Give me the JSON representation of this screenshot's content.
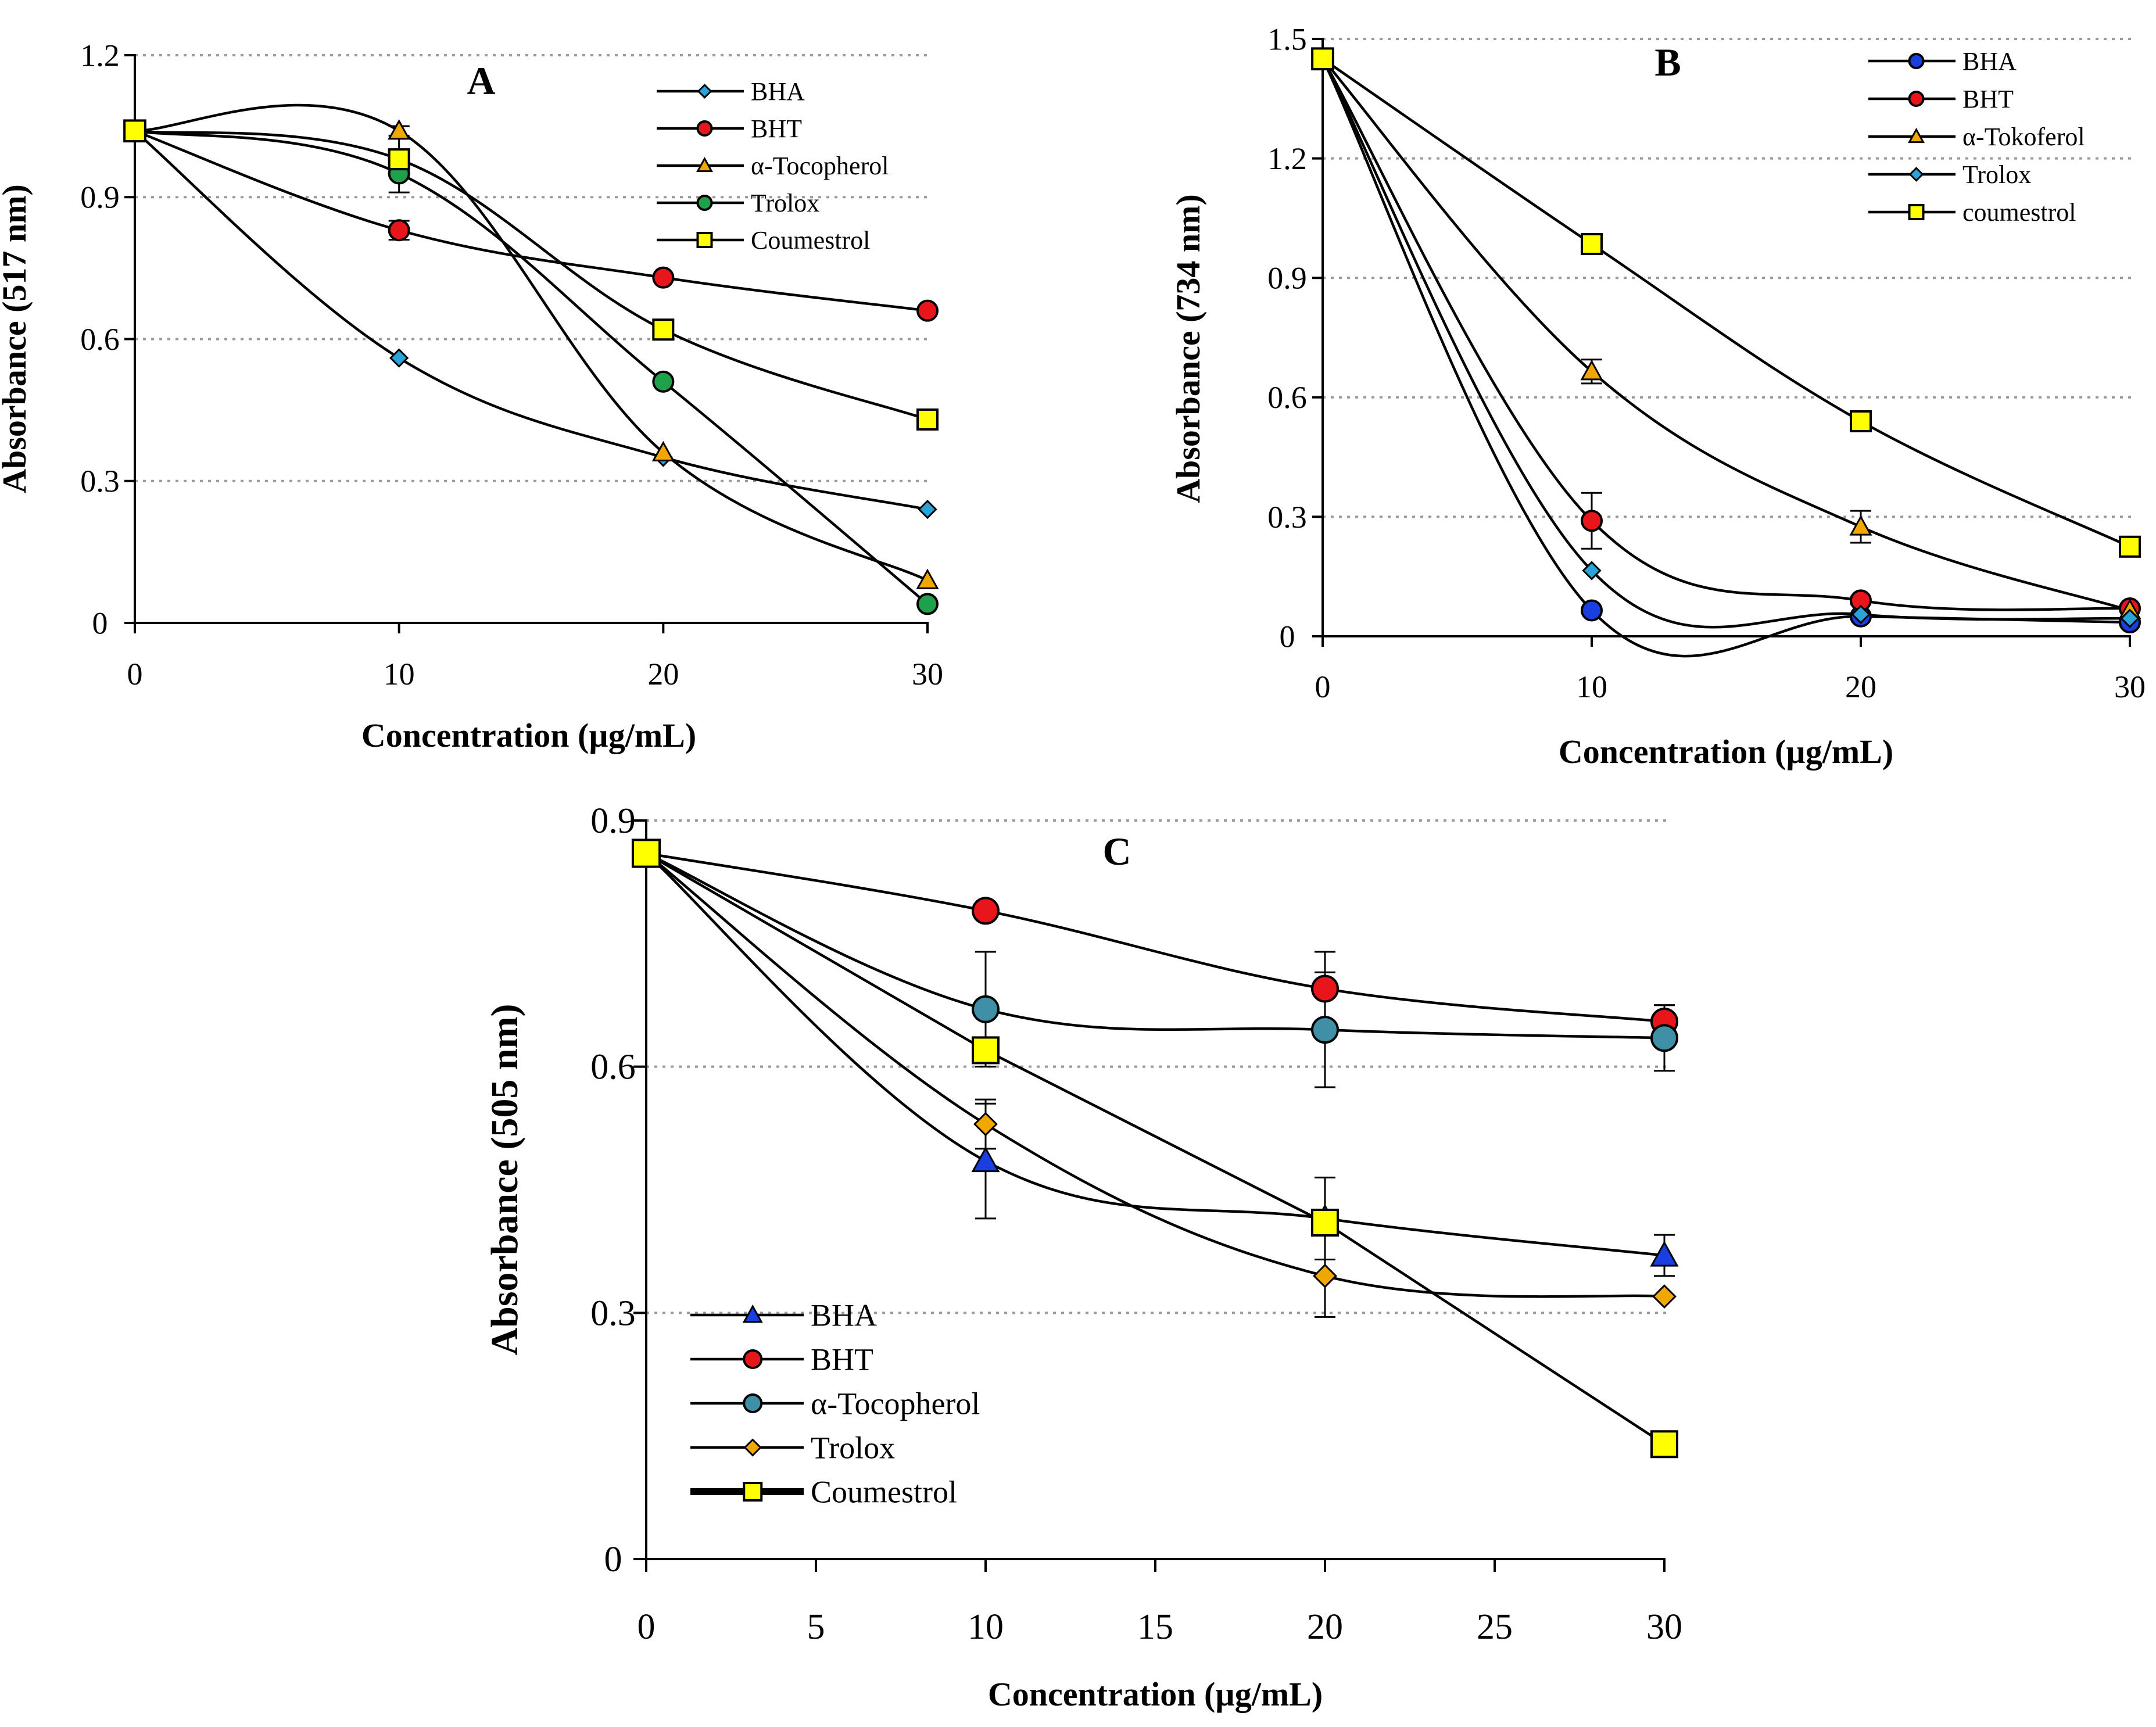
{
  "chart_data": [
    {
      "type": "line",
      "panel_label": "A",
      "xlabel": "Concentration (µg/mL)",
      "ylabel": "Absorbance (517 nm)",
      "x": [
        0,
        10,
        20,
        30
      ],
      "xticks": [
        0,
        10,
        20,
        30
      ],
      "xlim": [
        0,
        30
      ],
      "ylim": [
        0,
        1.2
      ],
      "yticks": [
        0,
        0.3,
        0.6,
        0.9,
        1.2
      ],
      "ytick_labels": [
        "0",
        "0.3",
        "0.6",
        "0.9",
        "1.2"
      ],
      "grid": true,
      "legend_position": "top-right",
      "series": [
        {
          "name": "BHA",
          "marker": "diamond",
          "color": "#29a3d8",
          "values": [
            1.04,
            0.56,
            0.35,
            0.24
          ],
          "errors": [
            0,
            0,
            0,
            0
          ]
        },
        {
          "name": "BHT",
          "marker": "circle",
          "color": "#e8161b",
          "values": [
            1.04,
            0.83,
            0.73,
            0.66
          ],
          "errors": [
            0,
            0.02,
            0,
            0
          ]
        },
        {
          "name": "α-Tocopherol",
          "marker": "triangle",
          "color": "#f0a800",
          "values": [
            1.04,
            1.04,
            0.36,
            0.09
          ],
          "errors": [
            0,
            0.01,
            0,
            0
          ]
        },
        {
          "name": "Trolox",
          "marker": "circle",
          "color": "#1fa04a",
          "values": [
            1.04,
            0.95,
            0.51,
            0.04
          ],
          "errors": [
            0,
            0,
            0,
            0
          ]
        },
        {
          "name": "Coumestrol",
          "marker": "square",
          "color": "#ffff00",
          "values": [
            1.04,
            0.98,
            0.62,
            0.43
          ],
          "errors": [
            0,
            0.07,
            0,
            0
          ]
        }
      ]
    },
    {
      "type": "line",
      "panel_label": "B",
      "xlabel": "Concentration (µg/mL)",
      "ylabel": "Absorbance (734 nm)",
      "x": [
        0,
        10,
        20,
        30
      ],
      "xticks": [
        0,
        10,
        20,
        30
      ],
      "xlim": [
        0,
        30
      ],
      "ylim": [
        0,
        1.5
      ],
      "yticks": [
        0,
        0.3,
        0.6,
        0.9,
        1.2,
        1.5
      ],
      "ytick_labels": [
        "0",
        "0.3",
        "0.6",
        "0.9",
        "1.2",
        "1.5"
      ],
      "grid": true,
      "legend_position": "top-right",
      "series": [
        {
          "name": "BHA",
          "marker": "circle",
          "color": "#1a3fe0",
          "values": [
            1.45,
            0.065,
            0.05,
            0.035
          ],
          "errors": [
            0,
            0,
            0,
            0
          ]
        },
        {
          "name": "BHT",
          "marker": "circle",
          "color": "#e8161b",
          "values": [
            1.45,
            0.29,
            0.09,
            0.07
          ],
          "errors": [
            0,
            0.07,
            0.01,
            0
          ]
        },
        {
          "name": "α-Tokoferol",
          "marker": "triangle",
          "color": "#f0a800",
          "values": [
            1.45,
            0.665,
            0.275,
            0.065
          ],
          "errors": [
            0,
            0.03,
            0.04,
            0
          ]
        },
        {
          "name": "Trolox",
          "marker": "diamond",
          "color": "#29a3d8",
          "values": [
            1.45,
            0.165,
            0.055,
            0.045
          ],
          "errors": [
            0,
            0,
            0,
            0
          ]
        },
        {
          "name": "coumestrol",
          "marker": "square",
          "color": "#ffff00",
          "values": [
            1.45,
            0.985,
            0.54,
            0.225
          ],
          "errors": [
            0,
            0,
            0,
            0
          ]
        }
      ]
    },
    {
      "type": "line",
      "panel_label": "C",
      "xlabel": "Concentration (µg/mL)",
      "ylabel": "Absorbance (505 nm)",
      "x": [
        0,
        10,
        20,
        30
      ],
      "xticks": [
        0,
        5,
        10,
        15,
        20,
        25,
        30
      ],
      "xlim": [
        0,
        30
      ],
      "ylim": [
        0,
        0.9
      ],
      "yticks": [
        0,
        0.3,
        0.6,
        0.9
      ],
      "ytick_labels": [
        "0",
        "0.3",
        "0.6",
        "0.9"
      ],
      "grid": true,
      "legend_position": "bottom-left",
      "series": [
        {
          "name": "BHA",
          "marker": "triangle",
          "color": "#1a3fe0",
          "values": [
            0.86,
            0.485,
            0.415,
            0.37
          ],
          "errors": [
            0,
            0.07,
            0.05,
            0.025
          ]
        },
        {
          "name": "BHT",
          "marker": "circle",
          "color": "#e8161b",
          "values": [
            0.86,
            0.79,
            0.695,
            0.655
          ],
          "errors": [
            0,
            0.01,
            0.045,
            0.02
          ]
        },
        {
          "name": "α-Tocopherol",
          "marker": "circle",
          "color": "#3f8fa6",
          "values": [
            0.86,
            0.67,
            0.645,
            0.635
          ],
          "errors": [
            0,
            0.07,
            0.07,
            0.04
          ]
        },
        {
          "name": "Trolox",
          "marker": "diamond",
          "color": "#f0a800",
          "values": [
            0.86,
            0.53,
            0.345,
            0.32
          ],
          "errors": [
            0,
            0.03,
            0.05,
            0
          ]
        },
        {
          "name": "Coumestrol",
          "marker": "square",
          "color": "#ffff00",
          "values": [
            0.86,
            0.62,
            0.41,
            0.14
          ],
          "errors": [
            0,
            0,
            0,
            0
          ]
        }
      ]
    }
  ]
}
